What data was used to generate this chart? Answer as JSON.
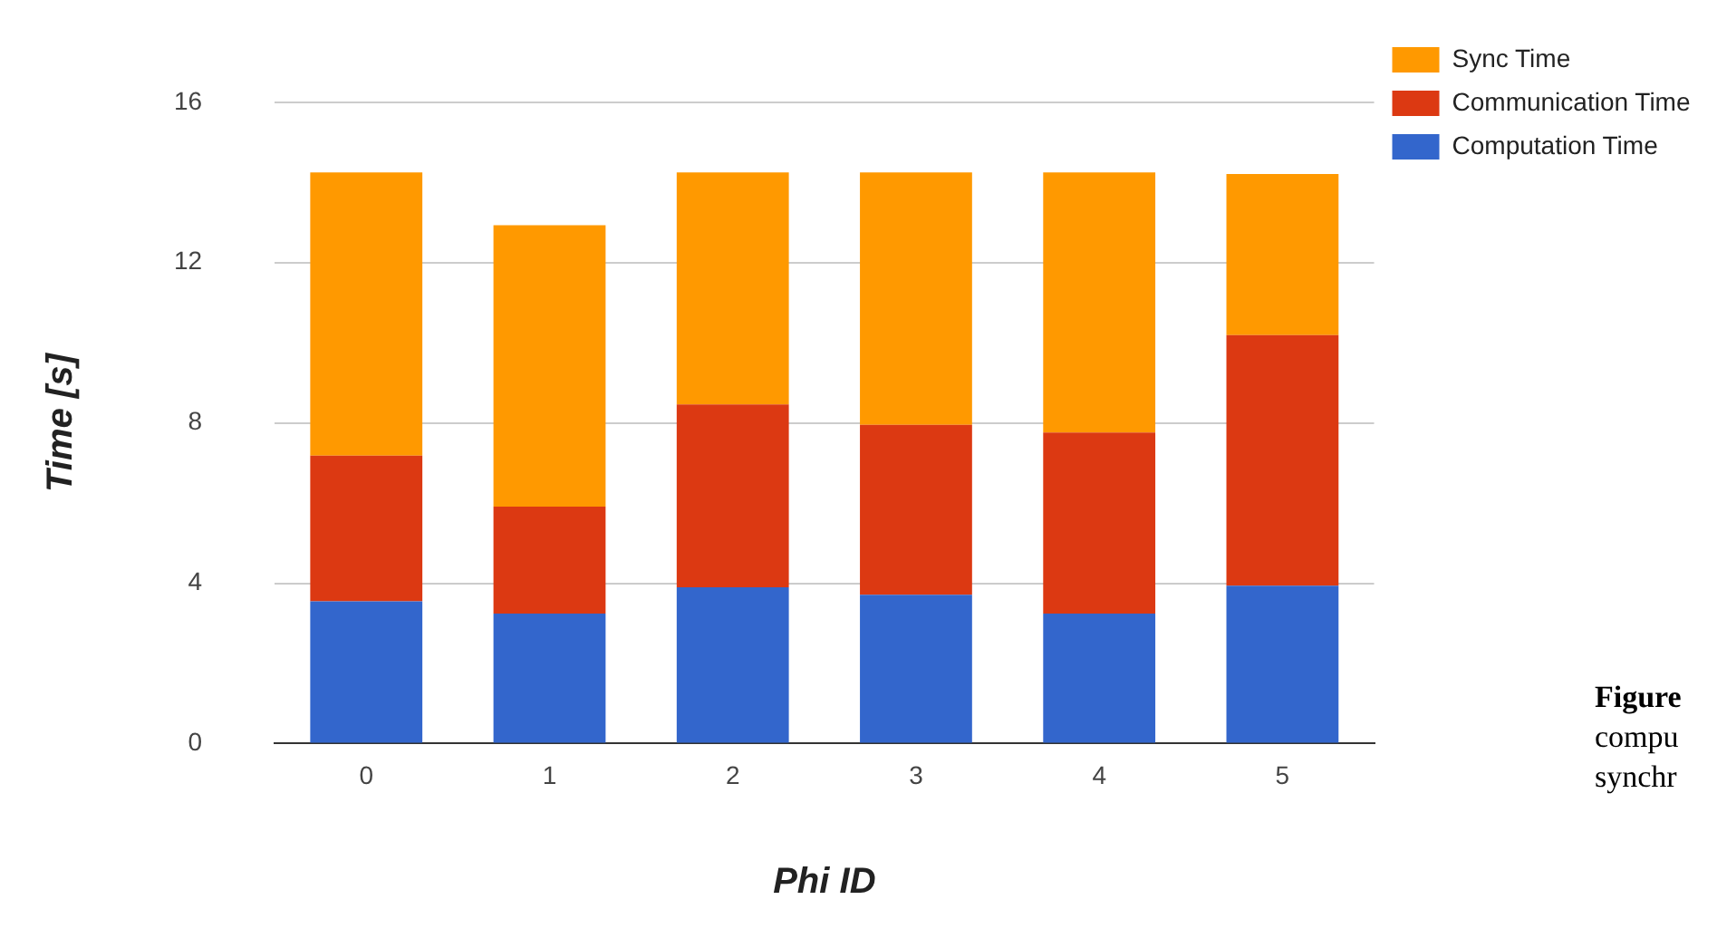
{
  "chart_data": {
    "type": "bar",
    "stacked": true,
    "xlabel": "Phi ID",
    "ylabel": "Time [s]",
    "categories": [
      "0",
      "1",
      "2",
      "3",
      "4",
      "5"
    ],
    "series": [
      {
        "name": "Computation Time",
        "color": "#3366cc",
        "values": [
          3.55,
          3.24,
          3.9,
          3.71,
          3.24,
          3.94
        ]
      },
      {
        "name": "Communication Time",
        "color": "#dc3912",
        "values": [
          3.63,
          2.67,
          4.56,
          4.24,
          4.52,
          6.25
        ]
      },
      {
        "name": "Sync Time",
        "color": "#ff9900",
        "values": [
          7.07,
          7.02,
          5.79,
          6.3,
          6.49,
          4.02
        ]
      }
    ],
    "ylim": [
      0,
      16
    ],
    "yticks": [
      0,
      4,
      8,
      12,
      16
    ],
    "grid": "y",
    "legend": "right",
    "annotations": [
      "Figure",
      "compu",
      "synchr"
    ]
  }
}
